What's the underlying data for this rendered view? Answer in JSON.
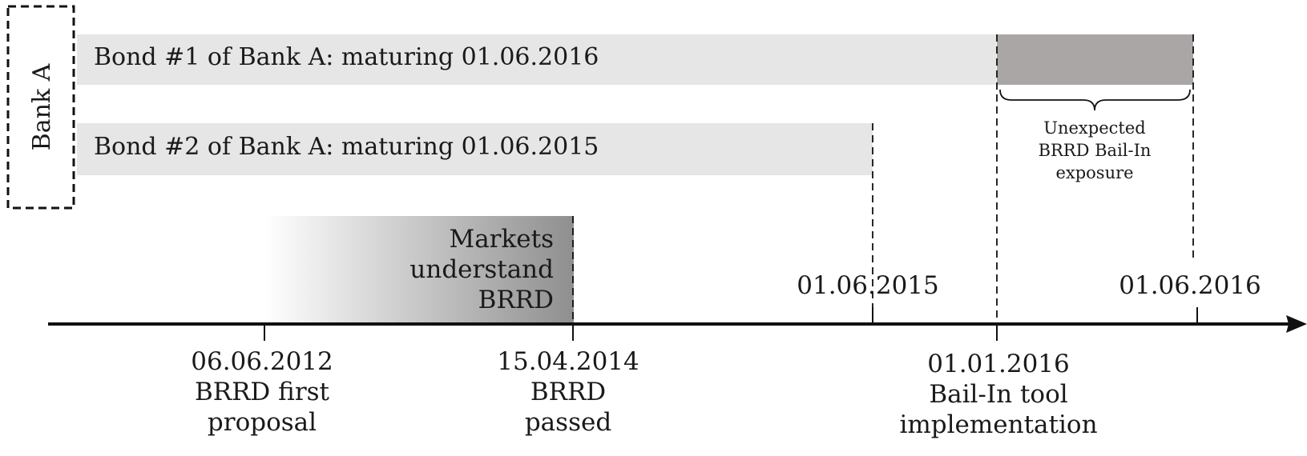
{
  "entity": {
    "label": "Bank A"
  },
  "bonds": [
    {
      "label": "Bond #1 of Bank A: maturing 01.06.2016"
    },
    {
      "label": "Bond #2 of Bank A: maturing 01.06.2015"
    }
  ],
  "exposure": {
    "lines": [
      "Unexpected",
      "BRRD Bail-In",
      "exposure"
    ],
    "color": "#aaa6a6"
  },
  "market_phase": {
    "lines": [
      "Markets",
      "understand",
      "BRRD"
    ],
    "gradient_from": "#ffffff",
    "gradient_to": "#8f8f8f"
  },
  "timeline": {
    "events_below": [
      {
        "date": "06.06.2012",
        "lines": [
          "BRRD first",
          "proposal"
        ]
      },
      {
        "date": "15.04.2014",
        "lines": [
          "BRRD",
          "passed"
        ]
      },
      {
        "date": "01.01.2016",
        "lines": [
          "Bail-In tool",
          "implementation"
        ]
      }
    ],
    "events_above": [
      {
        "date": "01.06.2015"
      },
      {
        "date": "01.06.2016"
      }
    ]
  },
  "colors": {
    "bond_bar": "#e6e6e6",
    "ink": "#111111"
  }
}
